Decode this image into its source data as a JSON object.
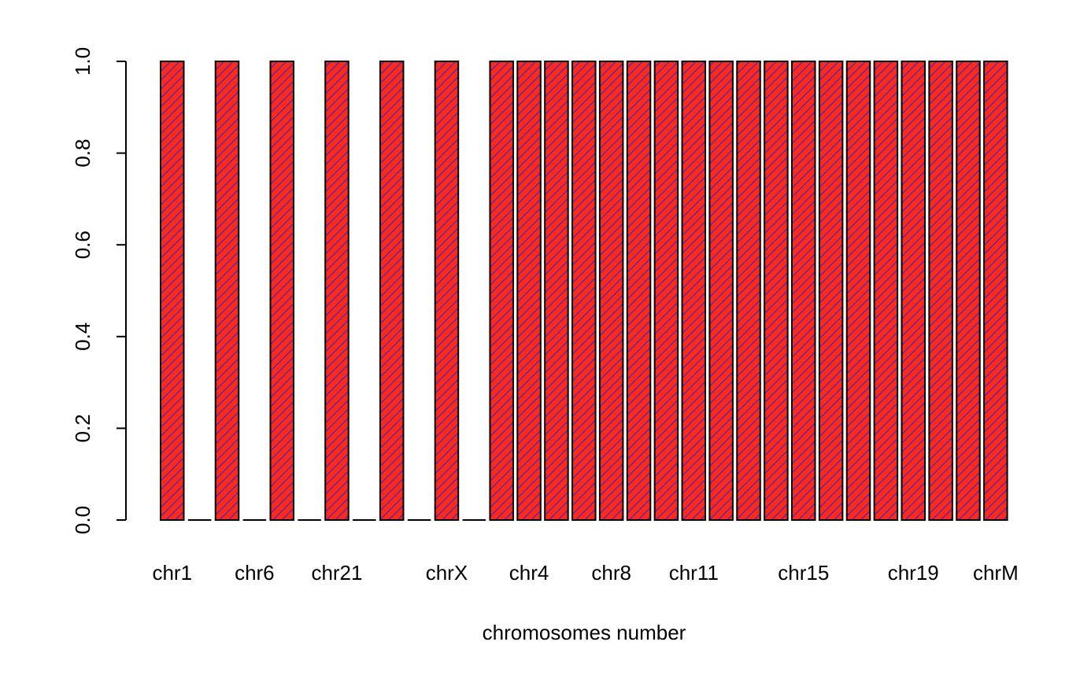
{
  "chart_data": {
    "type": "bar",
    "title": "",
    "xlabel": "chromosomes number",
    "ylabel": "",
    "ylim": [
      0,
      1
    ],
    "yticks": [
      "0.0",
      "0.2",
      "0.4",
      "0.6",
      "0.8",
      "1.0"
    ],
    "x_tick_labels": [
      {
        "label": "chr1",
        "bar_index": 0
      },
      {
        "label": "chr6",
        "bar_index": 3
      },
      {
        "label": "chr21",
        "bar_index": 6
      },
      {
        "label": "chrX",
        "bar_index": 10
      },
      {
        "label": "chr4",
        "bar_index": 13
      },
      {
        "label": "chr8",
        "bar_index": 16
      },
      {
        "label": "chr11",
        "bar_index": 19
      },
      {
        "label": "chr15",
        "bar_index": 23
      },
      {
        "label": "chr19",
        "bar_index": 27
      },
      {
        "label": "chrM",
        "bar_index": 30
      }
    ],
    "values": [
      1,
      0,
      1,
      0,
      1,
      0,
      1,
      0,
      1,
      0,
      1,
      0,
      1,
      1,
      1,
      1,
      1,
      1,
      1,
      1,
      1,
      1,
      1,
      1,
      1,
      1,
      1,
      1,
      1,
      1,
      1
    ],
    "bar_fill_color": "#ff2a1a",
    "bar_hatch_color": "#3b22c8",
    "bar_border_color": "#000000",
    "grid": false,
    "legend": "none"
  }
}
